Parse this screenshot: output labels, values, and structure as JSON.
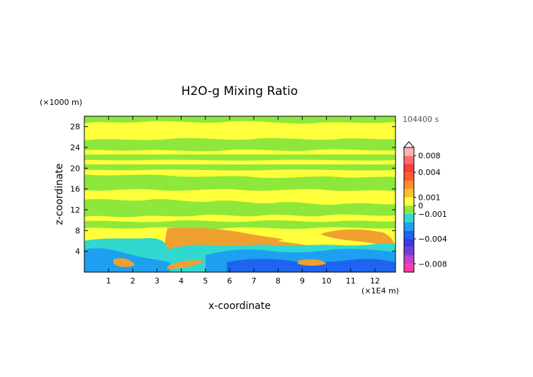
{
  "chart_data": {
    "type": "heatmap",
    "title": "H2O-g Mixing Ratio",
    "xlabel": "x-coordinate",
    "ylabel": "z-coordinate",
    "x_unit": "(×1E4 m)",
    "y_unit": "(×1000 m)",
    "time_label": "104400 s",
    "xlim": [
      0,
      12.85
    ],
    "ylim": [
      0,
      30
    ],
    "x_ticks": [
      "1",
      "2",
      "3",
      "4",
      "5",
      "6",
      "7",
      "8",
      "9",
      "10",
      "11",
      "12"
    ],
    "y_ticks": [
      "4",
      "8",
      "12",
      "16",
      "20",
      "24",
      "28"
    ],
    "colorbar": {
      "range": [
        -0.01,
        0.01
      ],
      "tick_labels": [
        {
          "value": 0.008,
          "text": "0.008"
        },
        {
          "value": 0.004,
          "text": "0.004"
        },
        {
          "value": 0.001,
          "text": "0.001"
        },
        {
          "value": 0,
          "text": "0"
        },
        {
          "value": -0.001,
          "text": "−0.001"
        },
        {
          "value": -0.004,
          "text": "−0.004"
        },
        {
          "value": -0.008,
          "text": "−0.008"
        }
      ],
      "colors_low_to_high": [
        "#ff3ca8",
        "#c040d0",
        "#7a3cd8",
        "#3a3ae0",
        "#1e64f0",
        "#1ea0f0",
        "#30d8d0",
        "#8ee83c",
        "#ffff3c",
        "#ffc030",
        "#ff8c2c",
        "#ff5a28",
        "#ff3c3c",
        "#ff6e6e",
        "#ffb4b4"
      ]
    },
    "field_regions": [
      {
        "level": "positive-low",
        "color": "#ffff3c",
        "description_value": 0.0005
      },
      {
        "level": "near-zero",
        "color": "#8ee83c",
        "description_value": -0.0003
      },
      {
        "level": "positive-mid",
        "color": "#f0a030",
        "description_value": 0.002
      },
      {
        "level": "negative-low",
        "color": "#30d8d0",
        "description_value": -0.001
      },
      {
        "level": "negative-mid",
        "color": "#1ea0f0",
        "description_value": -0.003
      }
    ]
  }
}
